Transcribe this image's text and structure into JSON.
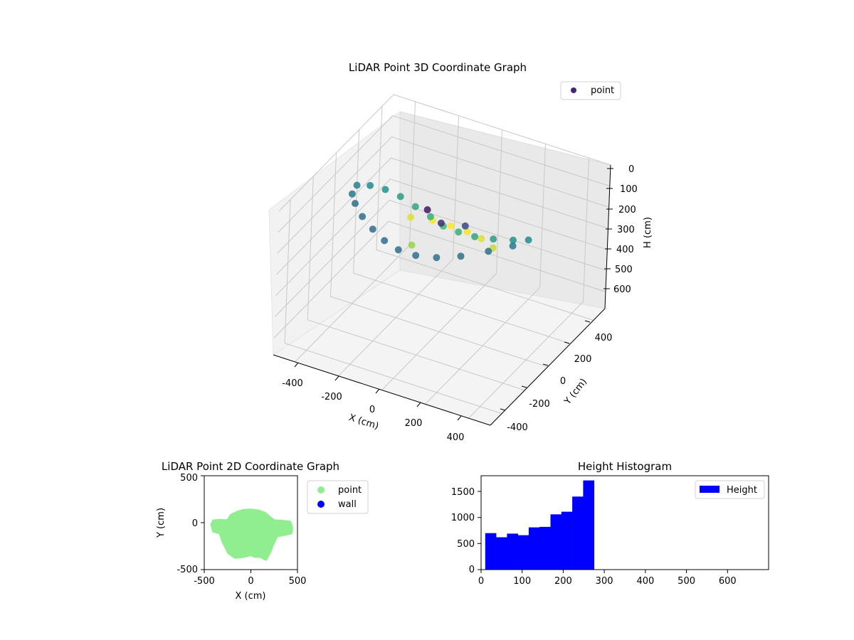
{
  "chart_data": [
    {
      "type": "scatter",
      "title": "LiDAR Point 3D Coordinate Graph",
      "xlabel": "X (cm)",
      "ylabel": "Y (cm)",
      "zlabel": "H (cm)",
      "xticks": [
        "-400",
        "-200",
        "0",
        "200",
        "400"
      ],
      "yticks": [
        "-400",
        "-200",
        "0",
        "200",
        "400"
      ],
      "zticks": [
        "0",
        "100",
        "200",
        "300",
        "400",
        "500",
        "600"
      ],
      "xlim": [
        -500,
        500
      ],
      "ylim": [
        -500,
        500
      ],
      "zlim": [
        0,
        680
      ],
      "z_axis_inverted": true,
      "colormap": "viridis",
      "legend": {
        "position": "top-right",
        "entries": [
          {
            "label": "point",
            "color": "#482475"
          }
        ]
      },
      "series": [
        {
          "name": "point",
          "x": [
            -400,
            -360,
            -300,
            -230,
            -150,
            -70,
            0,
            80,
            160,
            240,
            320,
            380,
            -380,
            -330,
            -260,
            -180,
            -100,
            -20,
            60,
            140,
            220,
            300,
            360,
            -200,
            -120,
            -40,
            40,
            120,
            200,
            0,
            80,
            160,
            -80
          ],
          "y": [
            0,
            40,
            60,
            60,
            40,
            20,
            0,
            -20,
            -30,
            -20,
            0,
            20,
            -80,
            -150,
            -220,
            -280,
            -330,
            -360,
            -360,
            -330,
            -270,
            -180,
            -80,
            100,
            140,
            150,
            140,
            110,
            60,
            -150,
            -180,
            -120,
            -120
          ],
          "z": [
            120,
            130,
            140,
            150,
            160,
            170,
            180,
            170,
            160,
            150,
            140,
            130,
            110,
            100,
            100,
            100,
            100,
            100,
            100,
            100,
            100,
            100,
            110,
            260,
            270,
            275,
            270,
            260,
            250,
            20,
            40,
            60,
            230
          ]
        }
      ]
    },
    {
      "type": "scatter",
      "title": "LiDAR Point 2D Coordinate Graph",
      "xlabel": "X (cm)",
      "ylabel": "Y (cm)",
      "xticks": [
        "-500",
        "0",
        "500"
      ],
      "yticks": [
        "-500",
        "0",
        "500"
      ],
      "xlim": [
        -500,
        500
      ],
      "ylim": [
        -500,
        500
      ],
      "legend": {
        "position": "outside-right",
        "entries": [
          {
            "label": "point",
            "color": "#90ee90"
          },
          {
            "label": "wall",
            "color": "#0000ff"
          }
        ]
      },
      "outline": {
        "x": [
          -420,
          -400,
          -330,
          -250,
          -210,
          -150,
          -80,
          0,
          80,
          150,
          210,
          250,
          330,
          420,
          440,
          430,
          360,
          280,
          240,
          200,
          160,
          100,
          40,
          0,
          -80,
          -170,
          -240,
          -300,
          -330,
          -400
        ],
        "y": [
          -20,
          20,
          25,
          20,
          80,
          110,
          130,
          135,
          125,
          100,
          50,
          20,
          15,
          5,
          -60,
          -110,
          -125,
          -140,
          -220,
          -320,
          -390,
          -360,
          -360,
          -340,
          -360,
          -370,
          -320,
          -200,
          -110,
          -90
        ]
      }
    },
    {
      "type": "bar",
      "title": "Height Histogram",
      "xlabel": "",
      "ylabel": "",
      "xticks": [
        "0",
        "100",
        "200",
        "300",
        "400",
        "500",
        "600"
      ],
      "yticks": [
        "0",
        "500",
        "1000",
        "1500"
      ],
      "xlim": [
        0,
        700
      ],
      "ylim": [
        0,
        1800
      ],
      "bin_edges": [
        10,
        36.5,
        63,
        89.5,
        116,
        142.5,
        169,
        195.5,
        222,
        248.5,
        275
      ],
      "values": [
        700,
        620,
        690,
        660,
        810,
        820,
        1060,
        1110,
        1400,
        1710
      ],
      "color": "#0000ff",
      "legend": {
        "position": "top-right",
        "entries": [
          {
            "label": "Height",
            "color": "#0000ff"
          }
        ]
      }
    }
  ]
}
